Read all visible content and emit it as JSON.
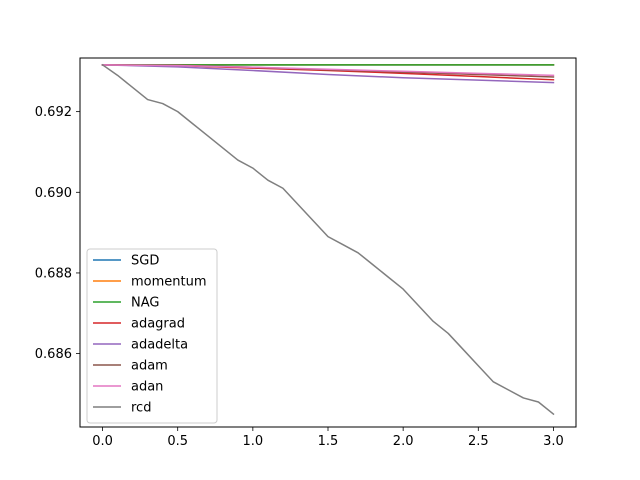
{
  "chart_data": {
    "type": "line",
    "title": "",
    "xlabel": "",
    "ylabel": "",
    "xlim": [
      -0.15,
      3.15
    ],
    "ylim": [
      0.68418,
      0.69333
    ],
    "x_ticks": [
      {
        "value": 0.0,
        "label": "0.0"
      },
      {
        "value": 0.5,
        "label": "0.5"
      },
      {
        "value": 1.0,
        "label": "1.0"
      },
      {
        "value": 1.5,
        "label": "1.5"
      },
      {
        "value": 2.0,
        "label": "2.0"
      },
      {
        "value": 2.5,
        "label": "2.5"
      },
      {
        "value": 3.0,
        "label": "3.0"
      }
    ],
    "y_ticks": [
      {
        "value": 0.686,
        "label": "0.686"
      },
      {
        "value": 0.688,
        "label": "0.688"
      },
      {
        "value": 0.69,
        "label": "0.690"
      },
      {
        "value": 0.692,
        "label": "0.692"
      }
    ],
    "grid": false,
    "legend_position": "lower-left",
    "series": [
      {
        "name": "SGD",
        "color": "#1f77b4",
        "x": [
          0,
          0.5,
          1.0,
          1.5,
          2.0,
          2.5,
          3.0
        ],
        "y": [
          0.69316,
          0.69316,
          0.69316,
          0.69316,
          0.69316,
          0.69316,
          0.69316
        ]
      },
      {
        "name": "momentum",
        "color": "#ff7f0e",
        "x": [
          0,
          0.5,
          1.0,
          1.5,
          2.0,
          2.5,
          3.0
        ],
        "y": [
          0.69316,
          0.69316,
          0.69316,
          0.69316,
          0.69316,
          0.69316,
          0.69316
        ]
      },
      {
        "name": "NAG",
        "color": "#2ca02c",
        "x": [
          0,
          0.5,
          1.0,
          1.5,
          2.0,
          2.5,
          3.0
        ],
        "y": [
          0.69316,
          0.69316,
          0.69316,
          0.69316,
          0.69316,
          0.69316,
          0.69316
        ]
      },
      {
        "name": "adagrad",
        "color": "#d62728",
        "x": [
          0,
          0.5,
          1.0,
          1.5,
          2.0,
          2.5,
          3.0
        ],
        "y": [
          0.69316,
          0.69314,
          0.69308,
          0.69302,
          0.69295,
          0.69287,
          0.69279
        ]
      },
      {
        "name": "adadelta",
        "color": "#9467bd",
        "x": [
          0,
          0.5,
          1.0,
          1.5,
          2.0,
          2.5,
          3.0
        ],
        "y": [
          0.69316,
          0.69311,
          0.69302,
          0.69292,
          0.69284,
          0.69278,
          0.69272
        ]
      },
      {
        "name": "adam",
        "color": "#8c564b",
        "x": [
          0,
          0.5,
          1.0,
          1.5,
          2.0,
          2.5,
          3.0
        ],
        "y": [
          0.69316,
          0.69315,
          0.6931,
          0.69304,
          0.69298,
          0.69292,
          0.69286
        ]
      },
      {
        "name": "adan",
        "color": "#e377c2",
        "x": [
          0,
          0.5,
          1.0,
          1.5,
          2.0,
          2.5,
          3.0
        ],
        "y": [
          0.69316,
          0.69314,
          0.6931,
          0.69305,
          0.693,
          0.69295,
          0.6929
        ]
      },
      {
        "name": "rcd",
        "color": "#7f7f7f",
        "x": [
          0,
          0.1,
          0.2,
          0.3,
          0.4,
          0.5,
          0.6,
          0.7,
          0.8,
          0.9,
          1.0,
          1.1,
          1.2,
          1.3,
          1.4,
          1.5,
          1.6,
          1.7,
          1.8,
          1.9,
          2.0,
          2.1,
          2.2,
          2.3,
          2.4,
          2.5,
          2.6,
          2.7,
          2.8,
          2.9,
          3.0
        ],
        "y": [
          0.69316,
          0.6929,
          0.6926,
          0.6923,
          0.6922,
          0.692,
          0.6917,
          0.6914,
          0.6911,
          0.6908,
          0.6906,
          0.6903,
          0.6901,
          0.6897,
          0.6893,
          0.6889,
          0.6887,
          0.6885,
          0.6882,
          0.6879,
          0.6876,
          0.6872,
          0.6868,
          0.6865,
          0.6861,
          0.6857,
          0.6853,
          0.6851,
          0.6849,
          0.6848,
          0.6845
        ]
      }
    ]
  }
}
